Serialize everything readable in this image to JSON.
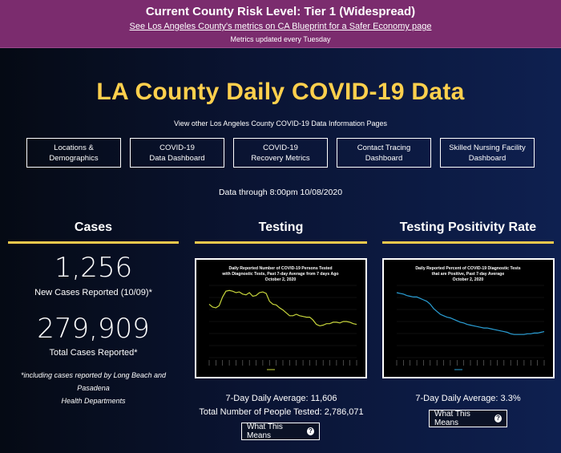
{
  "banner": {
    "risk_level": "Current County Risk Level: Tier 1 (Widespread)",
    "blueprint_link": "See Los Angeles County's metrics on CA Blueprint for a Safer Economy page",
    "updated_note": "Metrics updated every Tuesday"
  },
  "page": {
    "title": "LA County Daily COVID-19 Data",
    "subtitle": "View other Los Angeles County COVID-19 Data Information Pages",
    "data_through": "Data through 8:00pm 10/08/2020"
  },
  "nav": {
    "buttons": [
      {
        "line1": "Locations &",
        "line2": "Demographics"
      },
      {
        "line1": "COVID-19",
        "line2": "Data Dashboard"
      },
      {
        "line1": "COVID-19",
        "line2": "Recovery Metrics"
      },
      {
        "line1": "Contact Tracing",
        "line2": "Dashboard"
      },
      {
        "line1": "Skilled Nursing Facility",
        "line2": "Dashboard"
      }
    ]
  },
  "colors": {
    "banner_bg": "#7b2c6e",
    "title_gold": "#ffd04d",
    "divider_gold": "#f2c94c",
    "testing_line": "#c8d63c",
    "positivity_line": "#2a9fd6"
  },
  "cases": {
    "heading": "Cases",
    "new_cases": "1,256",
    "new_cases_label": "New Cases Reported (10/09)*",
    "total_cases": "279,909",
    "total_cases_label": "Total Cases Reported*",
    "footnote_line1": "*including cases reported by Long Beach and Pasadena",
    "footnote_line2": "Health Departments"
  },
  "testing": {
    "heading": "Testing",
    "chart_title_1": "Daily Reported Number of COVID-19 Persons Tested",
    "chart_title_2": "with Diagnostic Tests, Past 7-day Average from 7 days Ago",
    "chart_title_3": "October 2, 2020",
    "avg": "7-Day Daily Average: 11,606",
    "total": "Total Number of People Tested: 2,786,071",
    "means_label": "What This Means",
    "help_icon": "question-circle-icon"
  },
  "positivity": {
    "heading": "Testing Positivity Rate",
    "chart_title_1": "Daily Reported Percent of COVID-19 Diagnostic Tests",
    "chart_title_2": "that are Positive, Past 7-day Average",
    "chart_title_3": "October 2, 2020",
    "avg": "7-Day Daily Average: 3.3%",
    "means_label": "What This Means",
    "help_icon": "question-circle-icon"
  },
  "chart_data": [
    {
      "type": "line",
      "title": "Daily Reported Number of COVID-19 Persons Tested with Diagnostic Tests, Past 7-day Average from 7 days Ago October 2, 2020",
      "series": [
        {
          "values": [
            0.74,
            0.7,
            0.69,
            0.72,
            0.84,
            0.92,
            0.93,
            0.92,
            0.9,
            0.91,
            0.88,
            0.87,
            0.9,
            0.85,
            0.86,
            0.9,
            0.91,
            0.89,
            0.78,
            0.74,
            0.73,
            0.69,
            0.66,
            0.62,
            0.58,
            0.58,
            0.6,
            0.58,
            0.57,
            0.56,
            0.56,
            0.52,
            0.46,
            0.44,
            0.45,
            0.47,
            0.47,
            0.49,
            0.49,
            0.48,
            0.5,
            0.5,
            0.49,
            0.47,
            0.46
          ]
        }
      ]
    },
    {
      "type": "line",
      "title": "Daily Reported Percent of COVID-19 Diagnostic Tests that are Positive, Past 7-day Average October 2, 2020",
      "series": [
        {
          "values": [
            0.9,
            0.89,
            0.88,
            0.86,
            0.85,
            0.84,
            0.84,
            0.82,
            0.8,
            0.78,
            0.74,
            0.68,
            0.64,
            0.6,
            0.58,
            0.56,
            0.55,
            0.53,
            0.51,
            0.49,
            0.48,
            0.46,
            0.45,
            0.44,
            0.43,
            0.42,
            0.41,
            0.41,
            0.4,
            0.39,
            0.38,
            0.37,
            0.36,
            0.35,
            0.33,
            0.32,
            0.32,
            0.32,
            0.32,
            0.33,
            0.33,
            0.34,
            0.34,
            0.35,
            0.36
          ]
        }
      ]
    }
  ]
}
